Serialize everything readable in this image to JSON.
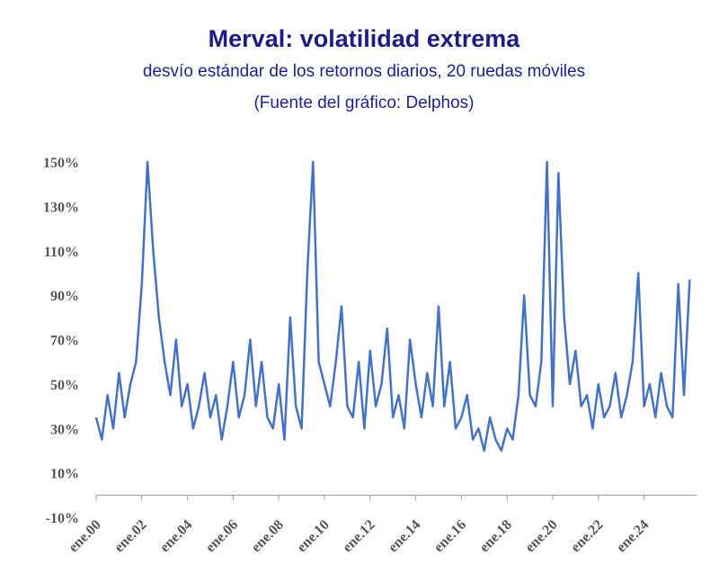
{
  "chart_data": {
    "type": "line",
    "title": "Merval: volatilidad extrema",
    "subtitle": "desvío estándar de los retornos diarios, 20 ruedas móviles",
    "source": "(Fuente del gráfico: Delphos)",
    "x": [
      2000,
      2000.25,
      2000.5,
      2000.75,
      2001,
      2001.25,
      2001.5,
      2001.75,
      2002,
      2002.25,
      2002.5,
      2002.75,
      2003,
      2003.25,
      2003.5,
      2003.75,
      2004,
      2004.25,
      2004.5,
      2004.75,
      2005,
      2005.25,
      2005.5,
      2005.75,
      2006,
      2006.25,
      2006.5,
      2006.75,
      2007,
      2007.25,
      2007.5,
      2007.75,
      2008,
      2008.25,
      2008.5,
      2008.75,
      2009,
      2009.25,
      2009.5,
      2009.75,
      2010,
      2010.25,
      2010.5,
      2010.75,
      2011,
      2011.25,
      2011.5,
      2011.75,
      2012,
      2012.25,
      2012.5,
      2012.75,
      2013,
      2013.25,
      2013.5,
      2013.75,
      2014,
      2014.25,
      2014.5,
      2014.75,
      2015,
      2015.25,
      2015.5,
      2015.75,
      2016,
      2016.25,
      2016.5,
      2016.75,
      2017,
      2017.25,
      2017.5,
      2017.75,
      2018,
      2018.25,
      2018.5,
      2018.75,
      2019,
      2019.25,
      2019.5,
      2019.75,
      2020,
      2020.25,
      2020.5,
      2020.75,
      2021,
      2021.25,
      2021.5,
      2021.75,
      2022,
      2022.25,
      2022.5,
      2022.75,
      2023,
      2023.25,
      2023.5,
      2023.75,
      2024,
      2024.25,
      2024.5,
      2024.75,
      2025,
      2025.25,
      2025.5,
      2025.75,
      2026
    ],
    "series": [
      {
        "name": "Merval",
        "color": "#4472c4",
        "values": [
          35,
          25,
          45,
          30,
          55,
          35,
          50,
          60,
          95,
          150,
          110,
          80,
          60,
          45,
          70,
          40,
          50,
          30,
          40,
          55,
          35,
          45,
          25,
          40,
          60,
          35,
          45,
          70,
          40,
          60,
          35,
          30,
          50,
          25,
          80,
          40,
          30,
          100,
          150,
          60,
          50,
          40,
          60,
          85,
          40,
          35,
          60,
          30,
          65,
          40,
          50,
          75,
          35,
          45,
          30,
          70,
          50,
          35,
          55,
          40,
          85,
          40,
          60,
          30,
          35,
          45,
          25,
          30,
          20,
          35,
          25,
          20,
          30,
          25,
          45,
          90,
          45,
          40,
          60,
          150,
          40,
          145,
          80,
          50,
          65,
          40,
          45,
          30,
          50,
          35,
          40,
          55,
          35,
          45,
          60,
          100,
          40,
          50,
          35,
          55,
          40,
          35,
          95,
          45,
          97
        ]
      }
    ],
    "xlim": [
      2000,
      2026.3
    ],
    "xticks": [
      {
        "value": 2000,
        "label": "ene.00"
      },
      {
        "value": 2002,
        "label": "ene.02"
      },
      {
        "value": 2004,
        "label": "ene.04"
      },
      {
        "value": 2006,
        "label": "ene.06"
      },
      {
        "value": 2008,
        "label": "ene.08"
      },
      {
        "value": 2010,
        "label": "ene.10"
      },
      {
        "value": 2012,
        "label": "ene.12"
      },
      {
        "value": 2014,
        "label": "ene.14"
      },
      {
        "value": 2016,
        "label": "ene.16"
      },
      {
        "value": 2018,
        "label": "ene.18"
      },
      {
        "value": 2020,
        "label": "ene.20"
      },
      {
        "value": 2022,
        "label": "ene.22"
      },
      {
        "value": 2024,
        "label": "ene.24"
      }
    ],
    "ylim": [
      -10,
      150
    ],
    "yticks": [
      {
        "value": -10,
        "label": "-10%"
      },
      {
        "value": 10,
        "label": "10%"
      },
      {
        "value": 30,
        "label": "30%"
      },
      {
        "value": 50,
        "label": "50%"
      },
      {
        "value": 70,
        "label": "70%"
      },
      {
        "value": 90,
        "label": "90%"
      },
      {
        "value": 110,
        "label": "110%"
      },
      {
        "value": 130,
        "label": "130%"
      },
      {
        "value": 150,
        "label": "150%"
      }
    ]
  }
}
